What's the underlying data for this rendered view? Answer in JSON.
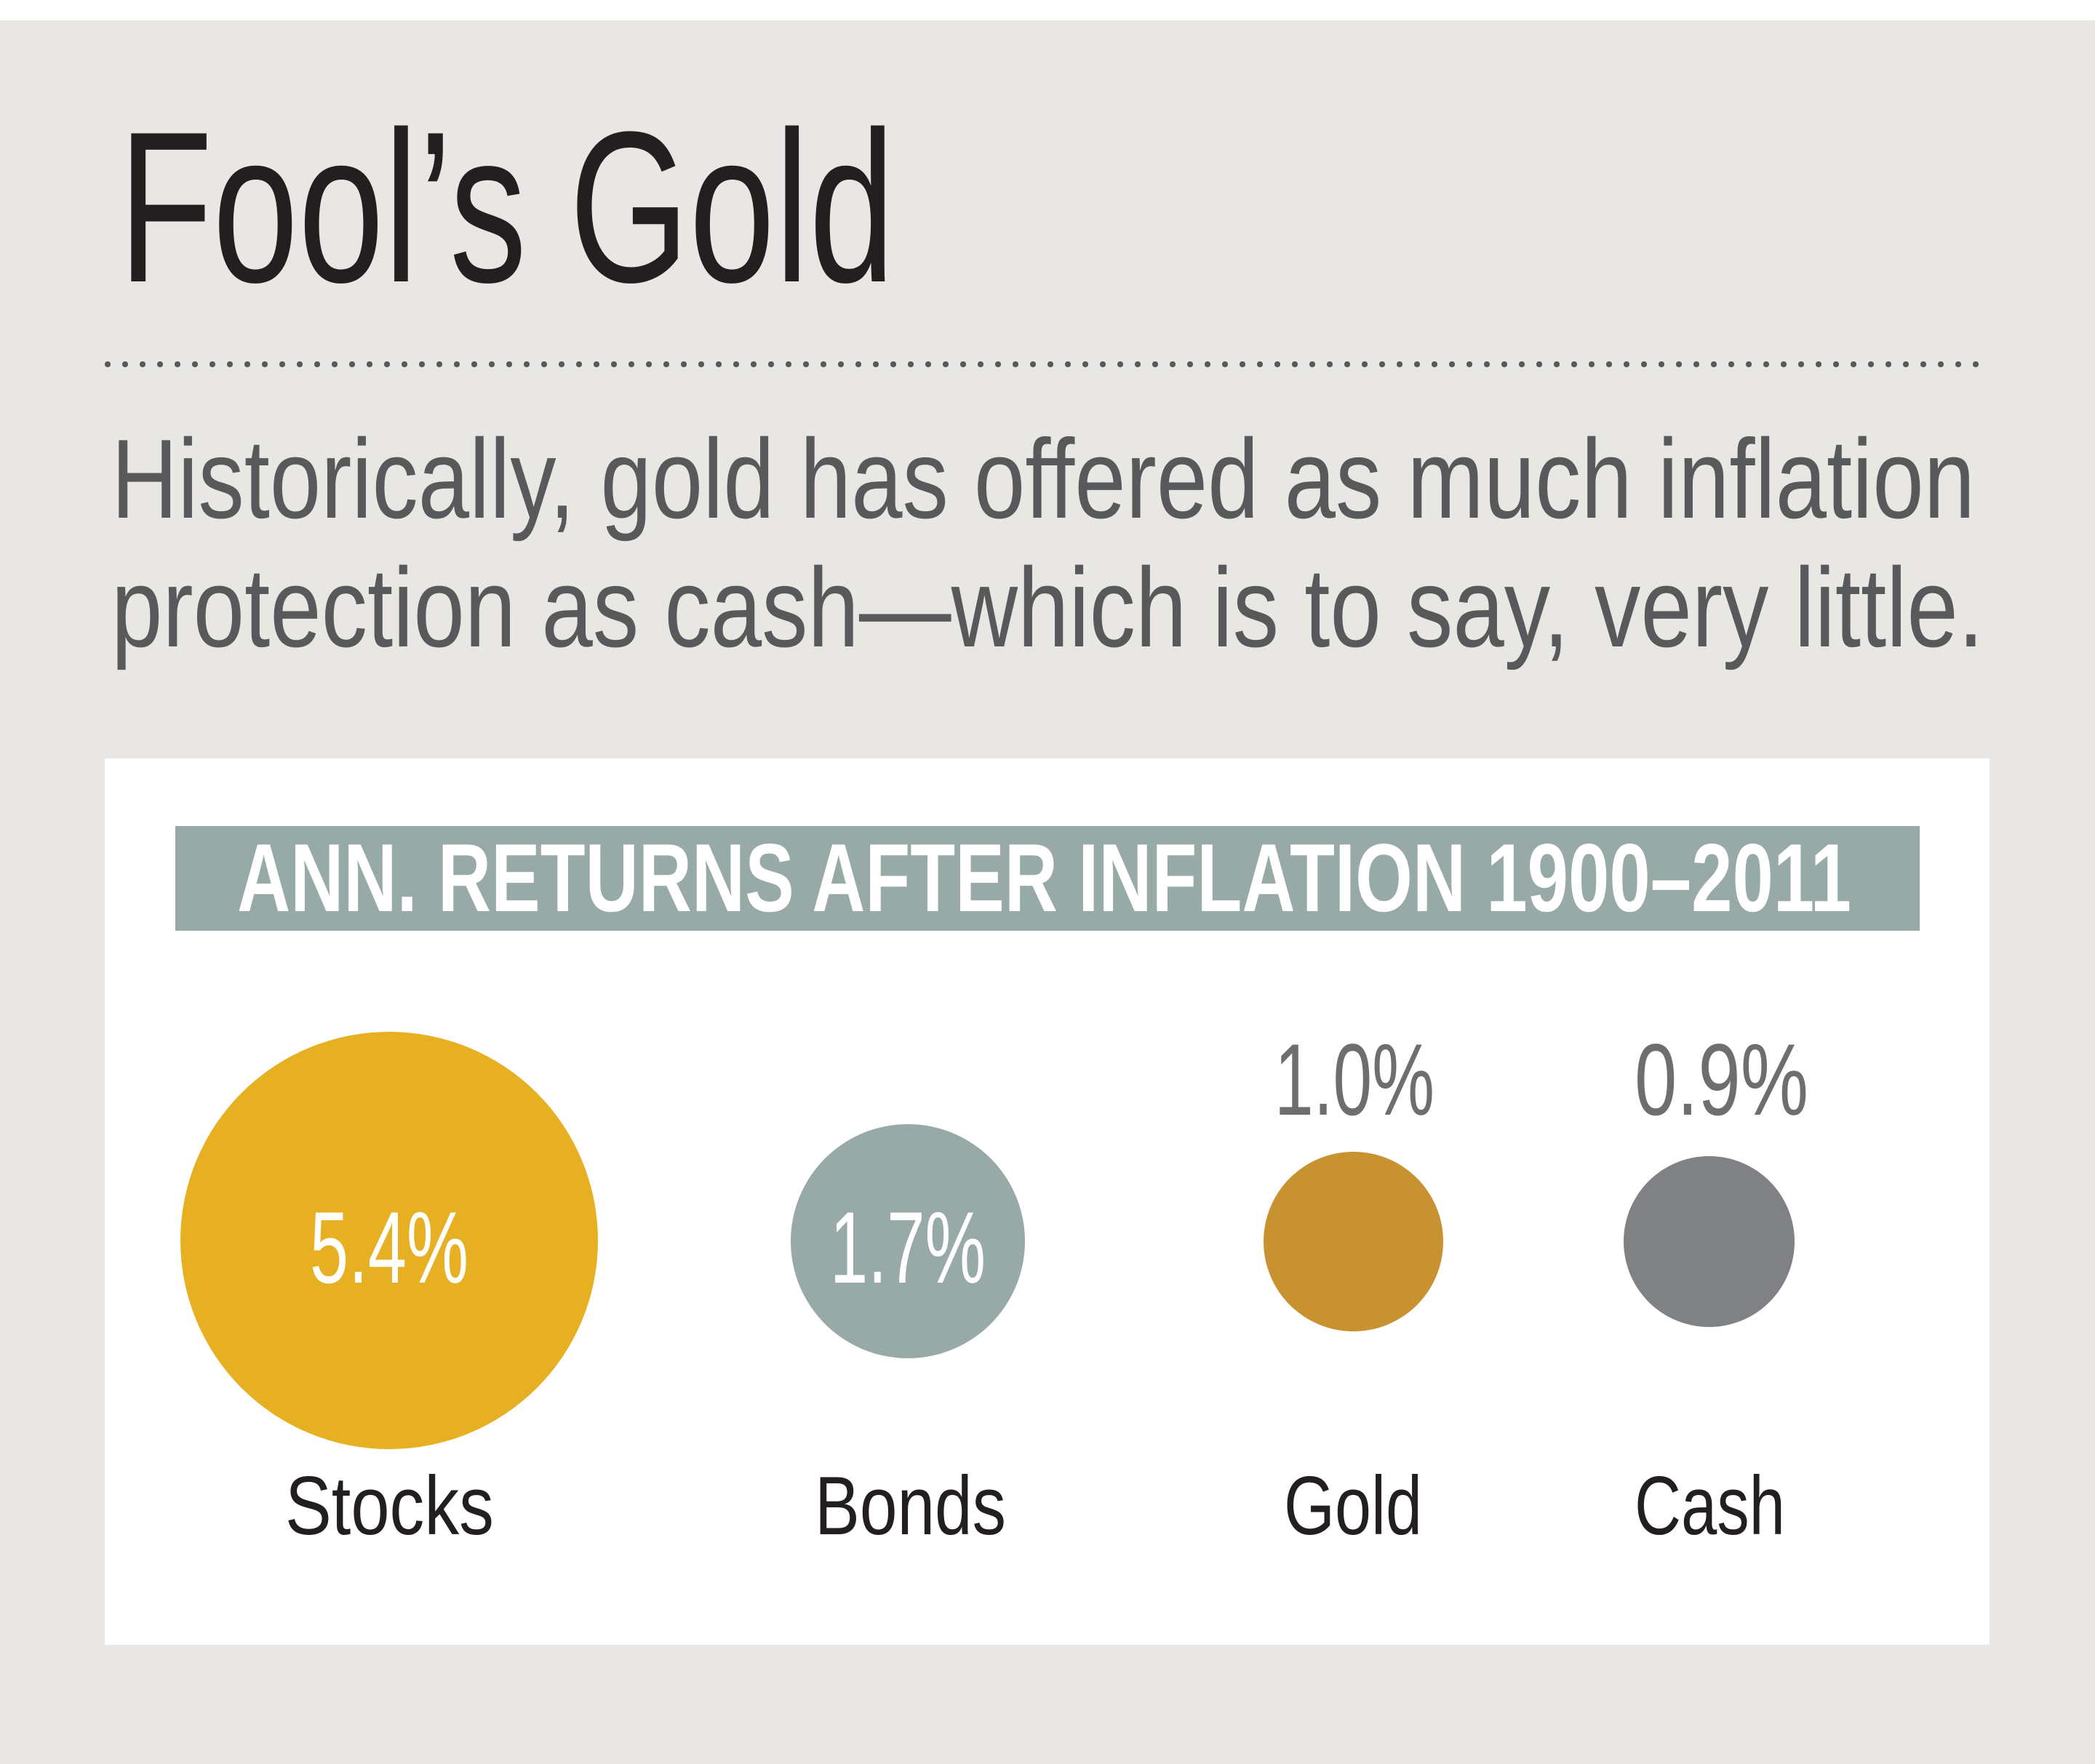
{
  "title": "Fool’s Gold",
  "subtitle": {
    "lines": [
      "Historically, gold has offered as much inflation",
      "protection as cash—which is to say, very little."
    ]
  },
  "chart_header": "ANN. RETURNS AFTER INFLATION 1900–2011",
  "colors": {
    "background": "#e8e7e3",
    "panel": "#ffffff",
    "header_bar": "#97aaa7",
    "title_text": "#231f20",
    "subtitle_text": "#58595b",
    "outside_value_text": "#6d6e70"
  },
  "assets": [
    {
      "label": "Stocks",
      "value": "5.4%",
      "color": "#e7b023",
      "value_inside": true
    },
    {
      "label": "Bonds",
      "value": "1.7%",
      "color": "#97aaa7",
      "value_inside": true
    },
    {
      "label": "Gold",
      "value": "1.0%",
      "color": "#c89230",
      "value_inside": false
    },
    {
      "label": "Cash",
      "value": "0.9%",
      "color": "#808184",
      "value_inside": false
    }
  ],
  "chart_data": {
    "type": "bubble",
    "title": "ANN. RETURNS AFTER INFLATION 1900–2011",
    "subtitle": "Historically, gold has offered as much inflation protection as cash—which is to say, very little.",
    "categories": [
      "Stocks",
      "Bonds",
      "Gold",
      "Cash"
    ],
    "values": [
      5.4,
      1.7,
      1.0,
      0.9
    ],
    "value_labels": [
      "5.4%",
      "1.7%",
      "1.0%",
      "0.9%"
    ],
    "unit": "% annualized real return",
    "colors": [
      "#e7b023",
      "#97aaa7",
      "#c89230",
      "#808184"
    ],
    "xlabel": "",
    "ylabel": "",
    "grid": false,
    "legend": "none"
  }
}
